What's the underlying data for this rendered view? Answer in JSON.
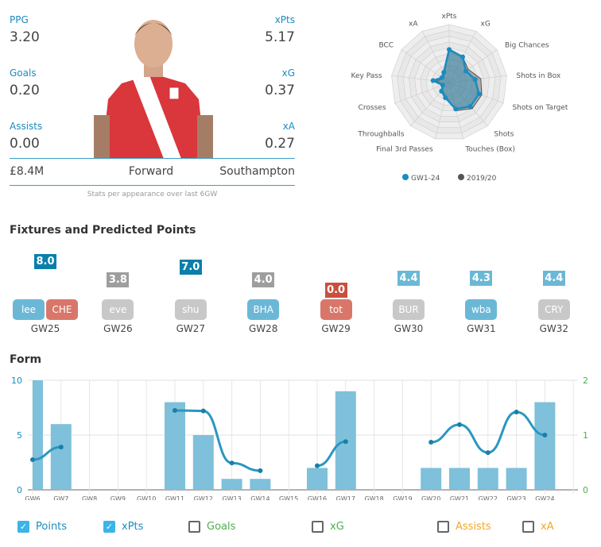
{
  "player": {
    "stats": [
      {
        "label": "PPG",
        "value": "3.20"
      },
      {
        "label": "xPts",
        "value": "5.17"
      },
      {
        "label": "Goals",
        "value": "0.20"
      },
      {
        "label": "xG",
        "value": "0.37"
      },
      {
        "label": "Assists",
        "value": "0.00"
      },
      {
        "label": "xA",
        "value": "0.27"
      }
    ],
    "price": "£8.4M",
    "position": "Forward",
    "team": "Southampton",
    "note": "Stats per appearance over last 6GW"
  },
  "radar": {
    "axes": [
      "xPts",
      "xG",
      "Big Chances",
      "Shots in Box",
      "Shots on Target",
      "Shots",
      "Touches (Box)",
      "Final 3rd Passes",
      "Throughballs",
      "Crosses",
      "Key Pass",
      "BCC",
      "xA"
    ],
    "series": [
      {
        "name": "GW1-24",
        "color": "#1a8cc0",
        "values": [
          0.57,
          0.5,
          0.35,
          0.45,
          0.55,
          0.55,
          0.47,
          0.27,
          0.2,
          0.12,
          0.28,
          0.15,
          0.2
        ]
      },
      {
        "name": "2019/20",
        "color": "#555555",
        "values": [
          0.55,
          0.5,
          0.4,
          0.55,
          0.6,
          0.6,
          0.5,
          0.25,
          0.18,
          0.1,
          0.22,
          0.12,
          0.18
        ]
      }
    ]
  },
  "fixtures": {
    "title": "Fixtures and Predicted Points",
    "items": [
      {
        "gw": "GW25",
        "pred": "8.0",
        "pc": "#0b7fab",
        "teams": [
          {
            "name": "lee",
            "c": "#6bb8d6"
          },
          {
            "name": "CHE",
            "c": "#d9766a"
          }
        ]
      },
      {
        "gw": "GW26",
        "pred": "3.8",
        "pc": "#9e9e9e",
        "teams": [
          {
            "name": "eve",
            "c": "#c8c8c8"
          }
        ]
      },
      {
        "gw": "GW27",
        "pred": "7.0",
        "pc": "#0b7fab",
        "teams": [
          {
            "name": "shu",
            "c": "#c8c8c8"
          }
        ]
      },
      {
        "gw": "GW28",
        "pred": "4.0",
        "pc": "#9e9e9e",
        "teams": [
          {
            "name": "BHA",
            "c": "#6bb8d6"
          }
        ]
      },
      {
        "gw": "GW29",
        "pred": "0.0",
        "pc": "#c9503e",
        "teams": [
          {
            "name": "tot",
            "c": "#d9766a"
          }
        ]
      },
      {
        "gw": "GW30",
        "pred": "4.4",
        "pc": "#6bb8d6",
        "teams": [
          {
            "name": "BUR",
            "c": "#c8c8c8"
          }
        ]
      },
      {
        "gw": "GW31",
        "pred": "4.3",
        "pc": "#6bb8d6",
        "teams": [
          {
            "name": "wba",
            "c": "#6bb8d6"
          }
        ]
      },
      {
        "gw": "GW32",
        "pred": "4.4",
        "pc": "#6bb8d6",
        "teams": [
          {
            "name": "CRY",
            "c": "#c8c8c8"
          }
        ]
      }
    ]
  },
  "form": {
    "title": "Form",
    "chart_data": {
      "type": "bar+line",
      "categories": [
        "GW6",
        "GW7",
        "GW8",
        "GW9",
        "GW10",
        "GW11",
        "GW12",
        "GW13",
        "GW14",
        "GW15",
        "GW16",
        "GW17",
        "GW18",
        "GW19",
        "GW20",
        "GW21",
        "GW22",
        "GW23",
        "GW24"
      ],
      "series": [
        {
          "name": "Points",
          "axis": "left",
          "type": "bar",
          "values": [
            10,
            6,
            null,
            null,
            null,
            8,
            5,
            1,
            1,
            null,
            2,
            9,
            null,
            null,
            2,
            2,
            2,
            2,
            8
          ]
        },
        {
          "name": "xPts",
          "axis": "right",
          "type": "line",
          "values": [
            0.55,
            0.78,
            null,
            null,
            null,
            1.45,
            1.44,
            0.49,
            0.35,
            null,
            0.44,
            0.88,
            null,
            null,
            0.87,
            1.19,
            0.68,
            1.42,
            1.0
          ]
        }
      ],
      "ylim_left": [
        0,
        10
      ],
      "yticks_left": [
        "0",
        "5",
        "10"
      ],
      "ylim_right": [
        0,
        2
      ],
      "yticks_right": [
        "0",
        "1",
        "2"
      ],
      "grid": true
    },
    "legend": [
      {
        "label": "Points",
        "checked": true,
        "color": "#1a8cc0"
      },
      {
        "label": "xPts",
        "checked": true,
        "color": "#1a8cc0"
      },
      {
        "label": "Goals",
        "checked": false,
        "color": "#4caf50"
      },
      {
        "label": "xG",
        "checked": false,
        "color": "#4caf50"
      },
      {
        "label": "Assists",
        "checked": false,
        "color": "#f5a623"
      },
      {
        "label": "xA",
        "checked": false,
        "color": "#f5a623"
      }
    ]
  }
}
